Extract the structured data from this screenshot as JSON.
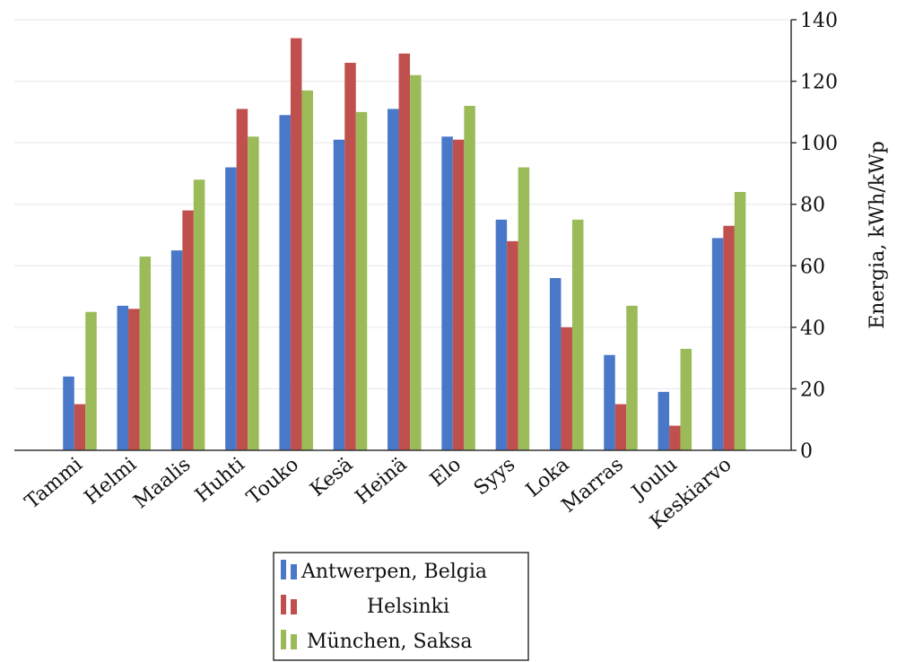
{
  "chart_data": {
    "type": "bar",
    "categories": [
      "Tammi",
      "Helmi",
      "Maalis",
      "Huhti",
      "Touko",
      "Kesä",
      "Heinä",
      "Elo",
      "Syys",
      "Loka",
      "Marras",
      "Joulu",
      "Keskiarvo"
    ],
    "series": [
      {
        "name": "Antwerpen, Belgia",
        "color": "#4a78c8",
        "values": [
          24,
          47,
          65,
          92,
          109,
          101,
          111,
          102,
          75,
          56,
          31,
          19,
          69
        ]
      },
      {
        "name": "Helsinki",
        "color": "#c0504d",
        "values": [
          15,
          46,
          78,
          111,
          134,
          126,
          129,
          101,
          68,
          40,
          15,
          8,
          73
        ]
      },
      {
        "name": "München, Saksa",
        "color": "#9bbb59",
        "values": [
          45,
          63,
          88,
          102,
          117,
          110,
          122,
          112,
          92,
          75,
          47,
          33,
          84
        ]
      }
    ],
    "ylabel": "Energia, kWh/kWp",
    "ylim": [
      0,
      140
    ],
    "yticks": [
      0,
      20,
      40,
      60,
      80,
      100,
      120,
      140
    ],
    "y_axis_side": "right",
    "grid": true,
    "legend_position": "bottom-center"
  }
}
